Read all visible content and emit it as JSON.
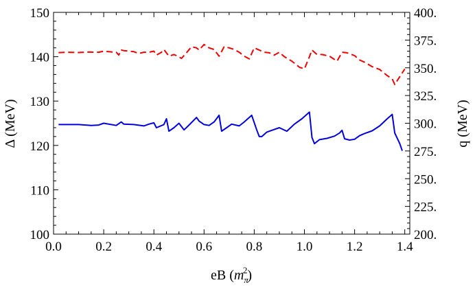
{
  "chart_data": {
    "type": "line",
    "title": "",
    "xlabel_main": "eB",
    "xlabel_unit_base": "m",
    "xlabel_unit_sub": "π",
    "xlabel_unit_sup": "2",
    "ylabel_left": "Δ (MeV)",
    "ylabel_right": "q (MeV)",
    "xlim": [
      0.0,
      1.42
    ],
    "ylim_left": [
      100,
      150
    ],
    "ylim_right": [
      200,
      400
    ],
    "x_ticks": [
      "0.0",
      "0.2",
      "0.4",
      "0.6",
      "0.8",
      "1.0",
      "1.2",
      "1.4"
    ],
    "x_tick_values": [
      0.0,
      0.2,
      0.4,
      0.6,
      0.8,
      1.0,
      1.2,
      1.4
    ],
    "y_left_ticks": [
      "100",
      "110",
      "120",
      "130",
      "140",
      "150"
    ],
    "y_left_tick_values": [
      100,
      110,
      120,
      130,
      140,
      150
    ],
    "y_right_ticks": [
      "200.",
      "225.",
      "250.",
      "275.",
      "300.",
      "325.",
      "350.",
      "375.",
      "400."
    ],
    "y_right_tick_values": [
      200,
      225,
      250,
      275,
      300,
      325,
      350,
      375,
      400
    ],
    "series": [
      {
        "name": "Δ",
        "axis": "left",
        "color": "#0000dd",
        "style": "solid",
        "x": [
          0.02,
          0.1,
          0.15,
          0.18,
          0.2,
          0.25,
          0.27,
          0.28,
          0.32,
          0.36,
          0.38,
          0.4,
          0.41,
          0.44,
          0.45,
          0.46,
          0.48,
          0.5,
          0.52,
          0.54,
          0.57,
          0.58,
          0.6,
          0.62,
          0.64,
          0.66,
          0.67,
          0.69,
          0.71,
          0.74,
          0.76,
          0.79,
          0.81,
          0.82,
          0.83,
          0.85,
          0.87,
          0.9,
          0.93,
          0.96,
          0.99,
          1.02,
          1.03,
          1.04,
          1.06,
          1.09,
          1.12,
          1.14,
          1.15,
          1.16,
          1.18,
          1.2,
          1.22,
          1.24,
          1.27,
          1.3,
          1.33,
          1.35,
          1.36,
          1.38,
          1.39
        ],
        "values": [
          124.7,
          124.7,
          124.5,
          124.6,
          125.0,
          124.5,
          125.3,
          124.8,
          124.7,
          124.4,
          124.8,
          125.1,
          124.0,
          124.7,
          126.0,
          123.2,
          124.0,
          125.0,
          123.5,
          124.6,
          126.3,
          125.5,
          124.7,
          124.5,
          125.3,
          126.8,
          123.2,
          124.0,
          124.8,
          124.4,
          125.3,
          126.8,
          123.5,
          122.0,
          122.0,
          123.0,
          123.4,
          124.0,
          123.2,
          124.8,
          126.0,
          127.5,
          121.8,
          120.4,
          121.3,
          121.6,
          122.1,
          122.8,
          123.4,
          121.5,
          121.2,
          121.4,
          122.2,
          122.7,
          123.3,
          124.4,
          126.0,
          127.0,
          122.8,
          120.4,
          118.8
        ]
      },
      {
        "name": "q",
        "axis": "right",
        "color": "#ee0000",
        "style": "dashed",
        "x": [
          0.02,
          0.05,
          0.1,
          0.14,
          0.18,
          0.2,
          0.22,
          0.25,
          0.26,
          0.27,
          0.28,
          0.32,
          0.34,
          0.36,
          0.38,
          0.4,
          0.41,
          0.43,
          0.44,
          0.46,
          0.48,
          0.49,
          0.51,
          0.53,
          0.55,
          0.57,
          0.58,
          0.6,
          0.62,
          0.64,
          0.66,
          0.68,
          0.7,
          0.72,
          0.74,
          0.76,
          0.78,
          0.8,
          0.82,
          0.84,
          0.86,
          0.88,
          0.9,
          0.92,
          0.95,
          0.98,
          1.0,
          1.02,
          1.03,
          1.05,
          1.07,
          1.1,
          1.13,
          1.15,
          1.17,
          1.2,
          1.22,
          1.24,
          1.27,
          1.3,
          1.33,
          1.35,
          1.36,
          1.38,
          1.4
        ],
        "values": [
          363.7,
          364,
          363.8,
          364.2,
          364,
          365,
          364.5,
          364,
          361.5,
          366,
          365.5,
          364.5,
          363,
          364,
          364,
          365,
          361.5,
          364,
          366.5,
          360.5,
          362,
          361,
          358.5,
          363.5,
          369,
          368,
          366,
          371,
          368,
          366.5,
          360.5,
          369,
          368,
          366.5,
          364,
          360.5,
          358,
          368,
          366,
          364,
          363.5,
          361.5,
          364,
          360,
          356,
          350.5,
          349,
          360,
          366,
          362,
          362,
          360.5,
          356,
          364,
          363.5,
          361,
          357,
          355,
          351,
          348.5,
          343,
          340,
          335,
          342,
          349
        ]
      }
    ]
  }
}
